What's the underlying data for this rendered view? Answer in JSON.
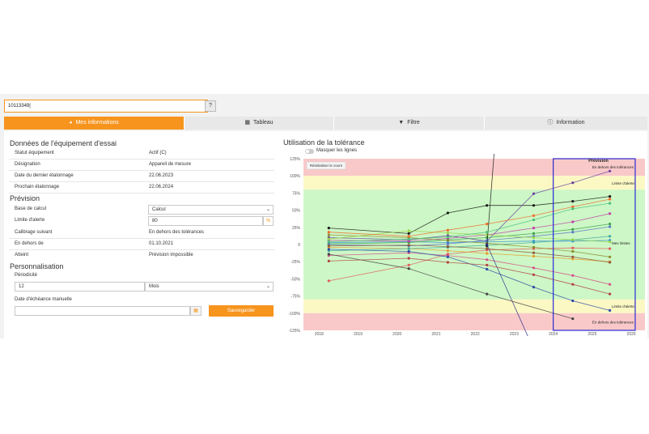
{
  "search": {
    "value": "10113349|",
    "help_label": "?"
  },
  "tabs": [
    {
      "label": "Mes informations",
      "icon": "gauge-icon"
    },
    {
      "label": "Tableau",
      "icon": "table-icon"
    },
    {
      "label": "Filtre",
      "icon": "filter-icon"
    },
    {
      "label": "Information",
      "icon": "info-icon"
    }
  ],
  "equipment": {
    "title": "Données de l'équipement d'essai",
    "rows": [
      {
        "label": "Statut équipement",
        "value": "Actif (C)"
      },
      {
        "label": "Désignation",
        "value": "Appareil de mesure"
      },
      {
        "label": "Date du dernier étalonnage",
        "value": "22.06.2023"
      },
      {
        "label": "Prochain étalonnage",
        "value": "22.06.2024"
      }
    ]
  },
  "forecast": {
    "title": "Prévision",
    "base_label": "Base de calcul",
    "base_value": "Calcul",
    "alert_label": "Limite d'alerte",
    "alert_value": "80",
    "alert_unit": "%",
    "next_cal_label": "Calibrage suivant",
    "next_cal_value": "En dehors des tolérances",
    "out_label": "En dehors de",
    "out_value": "01.10.2021",
    "reached_label": "Atteint",
    "reached_value": "Prévision impossible"
  },
  "personalization": {
    "title": "Personnalisation",
    "period_label": "Périodicité",
    "period_value": "12",
    "period_unit": "Mois",
    "manual_date_label": "Date d'échéance manuelle",
    "manual_date_value": "",
    "save_label": "Sauvegarder"
  },
  "chart_data": {
    "type": "line",
    "title": "Utilisation de la tolérance",
    "toggle_label": "Masquer les lignes",
    "reset_zoom_label": "Réinitialiser le zoom",
    "xlim": [
      2017.6,
      2026.35
    ],
    "ylim": [
      -125,
      125
    ],
    "x_ticks": [
      "2018",
      "2019",
      "2020",
      "2021",
      "2022",
      "2023",
      "2024",
      "2025",
      "2026"
    ],
    "y_ticks": [
      "125%",
      "100%",
      "75%",
      "50%",
      "25%",
      "0",
      "-25%",
      "-50%",
      "-75%",
      "-100%",
      "-125%"
    ],
    "bands": {
      "red": "#f9c9c9",
      "yellow": "#fbf8c4",
      "green": "#cdf7c6",
      "warn": 80,
      "limit": 100
    },
    "forecast_box": {
      "from": 2024.0,
      "to": 2026.1,
      "color": "#2b2bd4"
    },
    "annotations": [
      {
        "text": "Prévision",
        "x": 2024.9,
        "y": 120
      },
      {
        "text": "En dehors des tolérances",
        "x": 2025.0,
        "y": 111
      },
      {
        "text": "Limite d'alerte",
        "x": 2025.5,
        "y": 87
      },
      {
        "text": "Mes limites",
        "x": 2025.5,
        "y": 0
      },
      {
        "text": "Limite d'alerte",
        "x": 2025.5,
        "y": -92
      },
      {
        "text": "En dehors des tolérances",
        "x": 2025.0,
        "y": -115
      }
    ],
    "series": [
      {
        "color": "#1a1a1a",
        "values": [
          [
            2018.25,
            24
          ],
          [
            2020.3,
            16
          ],
          [
            2021.3,
            46
          ],
          [
            2022.3,
            57
          ],
          [
            2023.5,
            57
          ],
          [
            2024.5,
            63
          ],
          [
            2025.45,
            70
          ]
        ]
      },
      {
        "color": "#6a3fa0",
        "values": [
          [
            2018.25,
            10
          ],
          [
            2020.3,
            7
          ],
          [
            2021.3,
            13
          ],
          [
            2022.3,
            5
          ],
          [
            2023.5,
            74
          ],
          [
            2024.5,
            90
          ],
          [
            2025.45,
            107
          ]
        ]
      },
      {
        "color": "#2f8ad6",
        "values": [
          [
            2018.25,
            3
          ],
          [
            2020.3,
            4
          ],
          [
            2021.3,
            3
          ],
          [
            2022.3,
            4
          ],
          [
            2023.5,
            5
          ],
          [
            2024.5,
            5
          ],
          [
            2025.45,
            6
          ]
        ]
      },
      {
        "color": "#e35b5b",
        "values": [
          [
            2018.25,
            -53
          ],
          [
            2020.3,
            -30
          ],
          [
            2021.3,
            -14
          ],
          [
            2022.3,
            -8
          ],
          [
            2023.5,
            -6
          ],
          [
            2024.5,
            -5
          ],
          [
            2025.45,
            -6
          ]
        ]
      },
      {
        "color": "#3aa34a",
        "values": [
          [
            2018.25,
            1
          ],
          [
            2020.3,
            3
          ],
          [
            2021.3,
            7
          ],
          [
            2022.3,
            10
          ],
          [
            2023.5,
            16
          ],
          [
            2024.5,
            22
          ],
          [
            2025.45,
            30
          ]
        ]
      },
      {
        "color": "#e89a2c",
        "values": [
          [
            2018.25,
            -4
          ],
          [
            2020.3,
            -6
          ],
          [
            2021.3,
            -9
          ],
          [
            2022.3,
            -13
          ],
          [
            2023.5,
            -17
          ],
          [
            2024.5,
            -21
          ],
          [
            2025.45,
            -25
          ]
        ]
      },
      {
        "color": "#c03fa8",
        "values": [
          [
            2018.25,
            6
          ],
          [
            2020.3,
            5
          ],
          [
            2021.3,
            9
          ],
          [
            2022.3,
            14
          ],
          [
            2023.5,
            24
          ],
          [
            2024.5,
            33
          ],
          [
            2025.45,
            45
          ]
        ]
      },
      {
        "color": "#3fa8a0",
        "values": [
          [
            2018.25,
            -9
          ],
          [
            2020.3,
            -6
          ],
          [
            2021.3,
            -4
          ],
          [
            2022.3,
            -1
          ],
          [
            2023.5,
            3
          ],
          [
            2024.5,
            7
          ],
          [
            2025.45,
            12
          ]
        ]
      },
      {
        "color": "#8a8a2a",
        "values": [
          [
            2018.25,
            14
          ],
          [
            2020.3,
            10
          ],
          [
            2021.3,
            6
          ],
          [
            2022.3,
            2
          ],
          [
            2023.5,
            -4
          ],
          [
            2024.5,
            -10
          ],
          [
            2025.45,
            -18
          ]
        ]
      },
      {
        "color": "#d64f8a",
        "values": [
          [
            2018.25,
            -16
          ],
          [
            2020.3,
            -12
          ],
          [
            2021.3,
            -16
          ],
          [
            2022.3,
            -22
          ],
          [
            2023.5,
            -34
          ],
          [
            2024.5,
            -45
          ],
          [
            2025.45,
            -58
          ]
        ]
      },
      {
        "color": "#5d77c9",
        "values": [
          [
            2018.25,
            0
          ],
          [
            2020.3,
            -2
          ],
          [
            2021.3,
            1
          ],
          [
            2022.3,
            6
          ],
          [
            2023.5,
            12
          ],
          [
            2024.5,
            18
          ],
          [
            2025.45,
            26
          ]
        ]
      },
      {
        "color": "#9ad645",
        "values": [
          [
            2018.25,
            8
          ],
          [
            2020.3,
            20
          ],
          [
            2021.3,
            17
          ],
          [
            2022.3,
            14
          ],
          [
            2023.5,
            10
          ],
          [
            2024.5,
            7
          ],
          [
            2025.45,
            4
          ]
        ]
      },
      {
        "color": "#8f5a3a",
        "values": [
          [
            2018.25,
            -2
          ],
          [
            2020.3,
            -1
          ],
          [
            2021.3,
            -3
          ],
          [
            2022.3,
            -6
          ],
          [
            2023.5,
            -12
          ],
          [
            2024.5,
            -18
          ],
          [
            2025.45,
            -26
          ]
        ]
      },
      {
        "color": "#2b4aa8",
        "values": [
          [
            2018.25,
            -7
          ],
          [
            2020.3,
            -10
          ],
          [
            2021.3,
            -18
          ],
          [
            2022.3,
            -36
          ],
          [
            2023.5,
            -62
          ],
          [
            2024.5,
            -82
          ],
          [
            2025.45,
            -96
          ]
        ]
      },
      {
        "color": "#f06b2a",
        "values": [
          [
            2018.25,
            18
          ],
          [
            2020.3,
            12
          ],
          [
            2021.3,
            21
          ],
          [
            2022.3,
            30
          ],
          [
            2023.5,
            42
          ],
          [
            2024.5,
            55
          ],
          [
            2025.45,
            66
          ]
        ]
      },
      {
        "color": "#1a1a1a",
        "values": [
          [
            2022.3,
            -2
          ],
          [
            2022.55,
            180
          ]
        ]
      },
      {
        "color": "#2b2b8a",
        "values": [
          [
            2022.3,
            0
          ],
          [
            2023.4,
            -140
          ]
        ]
      },
      {
        "color": "#444444",
        "values": [
          [
            2018.25,
            -14
          ],
          [
            2020.3,
            -35
          ],
          [
            2022.3,
            -72
          ],
          [
            2024.5,
            -108
          ]
        ]
      },
      {
        "color": "#4cbf7a",
        "values": [
          [
            2018.25,
            4
          ],
          [
            2020.3,
            8
          ],
          [
            2021.3,
            11
          ],
          [
            2022.3,
            18
          ],
          [
            2023.5,
            36
          ],
          [
            2024.5,
            52
          ],
          [
            2025.45,
            60
          ]
        ]
      },
      {
        "color": "#b44141",
        "values": [
          [
            2018.25,
            -24
          ],
          [
            2020.3,
            -20
          ],
          [
            2021.3,
            -26
          ],
          [
            2022.3,
            -30
          ],
          [
            2023.5,
            -44
          ],
          [
            2024.5,
            -58
          ],
          [
            2025.45,
            -72
          ]
        ]
      }
    ]
  }
}
